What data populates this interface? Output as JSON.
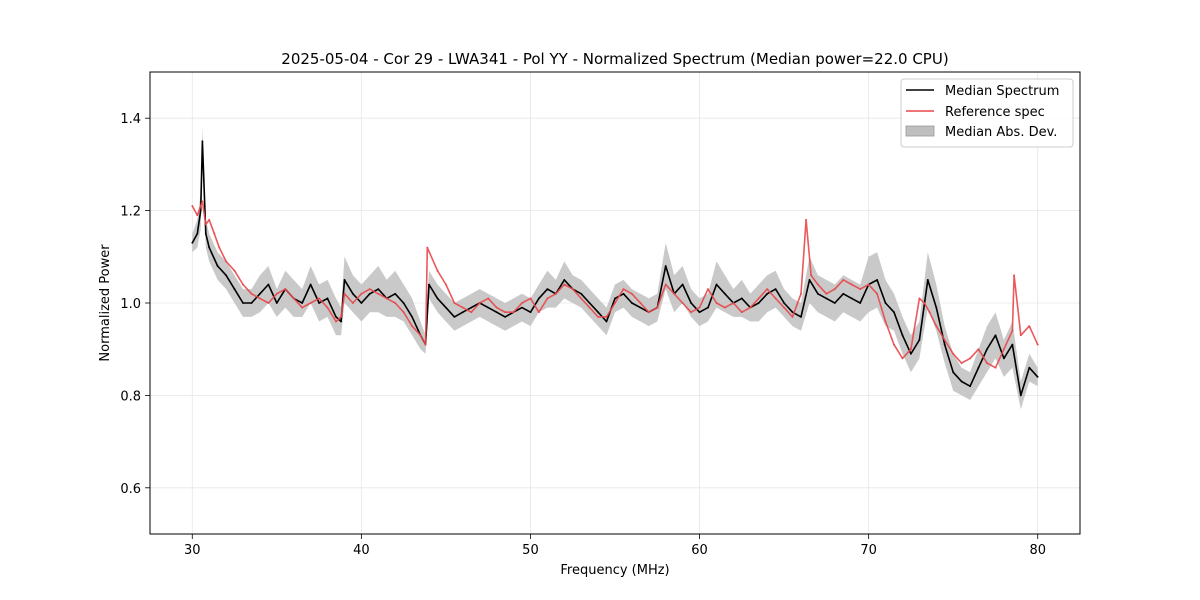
{
  "chart_data": {
    "type": "line",
    "title": "2025-05-04 - Cor 29 - LWA341 - Pol YY - Normalized Spectrum (Median power=22.0 CPU)",
    "xlabel": "Frequency (MHz)",
    "ylabel": "Normalized Power",
    "xlim": [
      27.5,
      82.5
    ],
    "ylim": [
      0.5,
      1.5
    ],
    "xticks": [
      30,
      40,
      50,
      60,
      70,
      80
    ],
    "yticks": [
      0.6,
      0.8,
      1.0,
      1.2,
      1.4
    ],
    "grid": true,
    "legend_position": "upper right",
    "legend": [
      {
        "label": "Median Spectrum",
        "color": "#000000",
        "kind": "line"
      },
      {
        "label": "Reference spec",
        "color": "#e8474a",
        "kind": "line"
      },
      {
        "label": "Median Abs. Dev.",
        "color": "#bfbfbf",
        "kind": "fill"
      }
    ],
    "series": [
      {
        "name": "Median Spectrum",
        "color": "#000000",
        "x": [
          30.0,
          30.3,
          30.5,
          30.6,
          30.8,
          31.0,
          31.5,
          32.0,
          32.5,
          33.0,
          33.5,
          34.0,
          34.5,
          35.0,
          35.5,
          36.0,
          36.5,
          37.0,
          37.5,
          38.0,
          38.5,
          38.8,
          39.0,
          39.5,
          40.0,
          40.5,
          41.0,
          41.5,
          42.0,
          42.5,
          43.0,
          43.5,
          43.8,
          44.0,
          44.5,
          45.0,
          45.5,
          46.0,
          46.5,
          47.0,
          47.5,
          48.0,
          48.5,
          49.0,
          49.5,
          50.0,
          50.5,
          51.0,
          51.5,
          52.0,
          52.5,
          53.0,
          53.5,
          54.0,
          54.5,
          55.0,
          55.5,
          56.0,
          56.5,
          57.0,
          57.5,
          58.0,
          58.5,
          59.0,
          59.5,
          60.0,
          60.5,
          61.0,
          61.5,
          62.0,
          62.5,
          63.0,
          63.5,
          64.0,
          64.5,
          65.0,
          65.5,
          66.0,
          66.5,
          67.0,
          67.5,
          68.0,
          68.5,
          69.0,
          69.5,
          70.0,
          70.5,
          71.0,
          71.5,
          72.0,
          72.5,
          73.0,
          73.5,
          74.0,
          74.5,
          75.0,
          75.5,
          76.0,
          76.5,
          77.0,
          77.5,
          78.0,
          78.5,
          79.0,
          79.5,
          80.0
        ],
        "values": [
          1.13,
          1.15,
          1.2,
          1.35,
          1.15,
          1.12,
          1.08,
          1.06,
          1.03,
          1.0,
          1.0,
          1.02,
          1.04,
          1.0,
          1.03,
          1.01,
          1.0,
          1.04,
          1.0,
          1.01,
          0.97,
          0.96,
          1.05,
          1.02,
          1.0,
          1.02,
          1.03,
          1.01,
          1.02,
          1.0,
          0.97,
          0.93,
          0.91,
          1.04,
          1.01,
          0.99,
          0.97,
          0.98,
          0.99,
          1.0,
          0.99,
          0.98,
          0.97,
          0.98,
          0.99,
          0.98,
          1.01,
          1.03,
          1.02,
          1.05,
          1.03,
          1.02,
          1.0,
          0.98,
          0.96,
          1.01,
          1.02,
          1.0,
          0.99,
          0.98,
          0.99,
          1.08,
          1.02,
          1.04,
          1.0,
          0.98,
          0.99,
          1.04,
          1.02,
          1.0,
          1.01,
          0.99,
          1.0,
          1.02,
          1.03,
          1.0,
          0.98,
          0.97,
          1.05,
          1.02,
          1.01,
          1.0,
          1.02,
          1.01,
          1.0,
          1.04,
          1.05,
          1.0,
          0.98,
          0.93,
          0.89,
          0.92,
          1.05,
          0.99,
          0.91,
          0.85,
          0.83,
          0.82,
          0.86,
          0.9,
          0.93,
          0.88,
          0.91,
          0.8,
          0.86,
          0.84
        ]
      },
      {
        "name": "Reference spec",
        "color": "#e8474a",
        "x": [
          30.0,
          30.3,
          30.6,
          30.8,
          31.0,
          31.3,
          31.6,
          32.0,
          32.5,
          33.0,
          33.5,
          34.0,
          34.5,
          35.0,
          35.5,
          36.0,
          36.5,
          37.0,
          37.5,
          38.0,
          38.5,
          38.8,
          39.0,
          39.5,
          40.0,
          40.5,
          41.0,
          41.5,
          42.0,
          42.5,
          43.0,
          43.5,
          43.8,
          43.9,
          44.5,
          45.0,
          45.5,
          46.0,
          46.5,
          47.0,
          47.5,
          48.0,
          48.5,
          49.0,
          49.5,
          50.0,
          50.5,
          51.0,
          51.5,
          52.0,
          52.5,
          53.0,
          53.5,
          54.0,
          54.5,
          55.0,
          55.5,
          56.0,
          56.5,
          57.0,
          57.5,
          58.0,
          58.5,
          59.0,
          59.5,
          60.0,
          60.5,
          61.0,
          61.5,
          62.0,
          62.5,
          63.0,
          63.5,
          64.0,
          64.5,
          65.0,
          65.5,
          66.0,
          66.3,
          66.6,
          67.0,
          67.5,
          68.0,
          68.5,
          69.0,
          69.5,
          70.0,
          70.5,
          71.0,
          71.5,
          72.0,
          72.5,
          73.0,
          73.3,
          73.6,
          74.0,
          74.5,
          75.0,
          75.5,
          76.0,
          76.5,
          77.0,
          77.5,
          78.0,
          78.5,
          78.6,
          79.0,
          79.5,
          80.0
        ],
        "values": [
          1.21,
          1.19,
          1.22,
          1.17,
          1.18,
          1.15,
          1.12,
          1.09,
          1.07,
          1.04,
          1.02,
          1.01,
          1.0,
          1.02,
          1.03,
          1.01,
          0.99,
          1.0,
          1.01,
          0.99,
          0.96,
          0.97,
          1.02,
          1.0,
          1.02,
          1.03,
          1.02,
          1.01,
          1.0,
          0.98,
          0.95,
          0.93,
          0.91,
          1.12,
          1.07,
          1.04,
          1.0,
          0.99,
          0.98,
          1.0,
          1.01,
          0.99,
          0.98,
          0.98,
          1.0,
          1.01,
          0.98,
          1.01,
          1.02,
          1.04,
          1.03,
          1.01,
          0.99,
          0.97,
          0.97,
          1.0,
          1.03,
          1.02,
          1.0,
          0.98,
          0.99,
          1.04,
          1.02,
          1.0,
          0.98,
          0.99,
          1.03,
          1.0,
          0.99,
          1.0,
          0.98,
          0.99,
          1.01,
          1.03,
          1.01,
          0.99,
          0.97,
          1.02,
          1.18,
          1.06,
          1.04,
          1.02,
          1.03,
          1.05,
          1.04,
          1.03,
          1.04,
          1.02,
          0.96,
          0.91,
          0.88,
          0.9,
          1.01,
          1.0,
          0.98,
          0.95,
          0.92,
          0.89,
          0.87,
          0.88,
          0.9,
          0.87,
          0.86,
          0.9,
          0.94,
          1.06,
          0.93,
          0.95,
          0.91
        ]
      },
      {
        "name": "Median Abs. Dev.",
        "color": "#bfbfbf",
        "x_ref": "Median Spectrum",
        "spread": [
          0.02,
          0.03,
          0.04,
          0.03,
          0.03,
          0.03,
          0.03,
          0.03,
          0.03,
          0.03,
          0.03,
          0.04,
          0.04,
          0.03,
          0.04,
          0.04,
          0.03,
          0.04,
          0.04,
          0.04,
          0.04,
          0.03,
          0.05,
          0.04,
          0.04,
          0.04,
          0.05,
          0.04,
          0.05,
          0.04,
          0.04,
          0.03,
          0.02,
          0.03,
          0.03,
          0.03,
          0.03,
          0.03,
          0.03,
          0.03,
          0.03,
          0.03,
          0.03,
          0.03,
          0.03,
          0.03,
          0.03,
          0.04,
          0.03,
          0.04,
          0.03,
          0.03,
          0.03,
          0.03,
          0.03,
          0.03,
          0.03,
          0.03,
          0.03,
          0.03,
          0.03,
          0.05,
          0.04,
          0.04,
          0.03,
          0.03,
          0.03,
          0.05,
          0.04,
          0.03,
          0.04,
          0.03,
          0.04,
          0.04,
          0.04,
          0.03,
          0.03,
          0.03,
          0.05,
          0.04,
          0.04,
          0.04,
          0.04,
          0.04,
          0.04,
          0.06,
          0.06,
          0.05,
          0.04,
          0.04,
          0.04,
          0.04,
          0.06,
          0.05,
          0.04,
          0.04,
          0.03,
          0.03,
          0.04,
          0.05,
          0.05,
          0.04,
          0.05,
          0.03,
          0.03,
          0.02
        ]
      }
    ]
  }
}
